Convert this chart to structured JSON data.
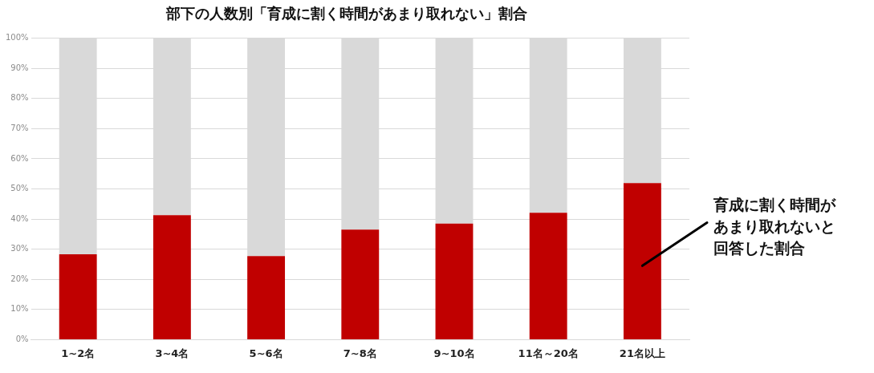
{
  "chart_data": {
    "type": "bar",
    "title": "部下の人数別「育成に割く時間があまり取れない」割合",
    "categories": [
      "1~2名",
      "3~4名",
      "5~6名",
      "7~8名",
      "9~10名",
      "11名～20名",
      "21名以上"
    ],
    "stacked": true,
    "series": [
      {
        "color": "#c00000",
        "values": [
          28.3,
          41.3,
          27.7,
          36.5,
          38.5,
          42.1,
          51.9
        ]
      },
      {
        "color": "#d9d9d9",
        "values": [
          71.7,
          58.7,
          72.3,
          63.5,
          61.5,
          57.9,
          48.1
        ]
      }
    ],
    "ylim": [
      0,
      100
    ],
    "yticks": [
      {
        "value": 0,
        "label": "0%"
      },
      {
        "value": 10,
        "label": "10%"
      },
      {
        "value": 20,
        "label": "20%"
      },
      {
        "value": 30,
        "label": "30%"
      },
      {
        "value": 40,
        "label": "40%"
      },
      {
        "value": 50,
        "label": "50%"
      },
      {
        "value": 60,
        "label": "60%"
      },
      {
        "value": 70,
        "label": "70%"
      },
      {
        "value": 80,
        "label": "80%"
      },
      {
        "value": 90,
        "label": "90%"
      },
      {
        "value": 100,
        "label": "100%"
      }
    ],
    "grid": "y",
    "annotations": [
      "育成に割く時間があまり取れないと回答した割合"
    ]
  }
}
